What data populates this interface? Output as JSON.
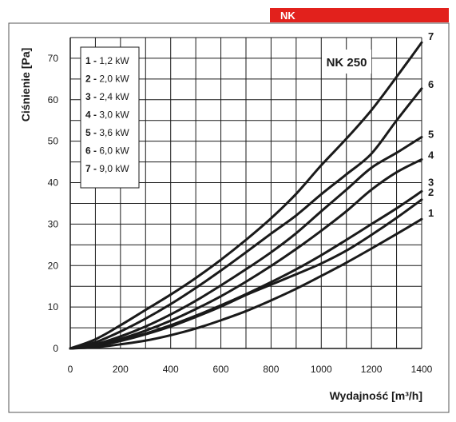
{
  "header": {
    "label": "NK",
    "color": "#e2211c"
  },
  "chart_data": {
    "type": "line",
    "title": "NK 250",
    "xlabel": "Wydajność [m³/h]",
    "ylabel": "Ciśnienie [Pa]",
    "xlim": [
      0,
      1400
    ],
    "ylim": [
      0,
      75
    ],
    "x_ticks": [
      0,
      200,
      400,
      600,
      800,
      1000,
      1200,
      1400
    ],
    "y_ticks": [
      0,
      10,
      20,
      30,
      40,
      50,
      60,
      70
    ],
    "grid": true,
    "legend_position": "top-left",
    "line_color": "#1a1a1a",
    "series": [
      {
        "id": "1",
        "name": "1,2 kW",
        "x": [
          0,
          100,
          200,
          300,
          400,
          500,
          600,
          700,
          800,
          900,
          1000,
          1100,
          1200,
          1300,
          1400
        ],
        "values": [
          0,
          0.3,
          1.0,
          1.9,
          3.2,
          4.8,
          6.8,
          9.0,
          11.6,
          14.4,
          17.5,
          20.7,
          24.1,
          27.6,
          31.2
        ]
      },
      {
        "id": "2",
        "name": "2,0 kW",
        "x": [
          0,
          100,
          200,
          300,
          400,
          500,
          600,
          700,
          800,
          900,
          1000,
          1100,
          1200,
          1300,
          1400
        ],
        "values": [
          0,
          0.6,
          1.8,
          3.4,
          5.3,
          7.6,
          10.1,
          12.9,
          15.4,
          17.9,
          20.5,
          23.6,
          27.4,
          31.5,
          35.9
        ]
      },
      {
        "id": "3",
        "name": "2,4 kW",
        "x": [
          0,
          100,
          200,
          300,
          400,
          500,
          600,
          700,
          800,
          900,
          1000,
          1100,
          1200,
          1300,
          1400
        ],
        "values": [
          0,
          0.7,
          2.0,
          3.6,
          5.6,
          7.9,
          10.4,
          13.1,
          16.0,
          19.1,
          22.5,
          26.2,
          30.0,
          33.8,
          37.9
        ]
      },
      {
        "id": "4",
        "name": "3,0 kW",
        "x": [
          0,
          100,
          200,
          300,
          400,
          500,
          600,
          700,
          800,
          900,
          1000,
          1100,
          1200,
          1300,
          1400
        ],
        "values": [
          0,
          0.8,
          2.3,
          4.3,
          6.7,
          9.5,
          12.6,
          16.1,
          19.9,
          24.0,
          28.4,
          33.1,
          38.3,
          42.5,
          45.6
        ]
      },
      {
        "id": "5",
        "name": "3,6 kW",
        "x": [
          0,
          100,
          200,
          300,
          400,
          500,
          600,
          700,
          800,
          900,
          1000,
          1100,
          1200,
          1300,
          1400
        ],
        "values": [
          0,
          1.0,
          2.9,
          5.3,
          8.2,
          11.5,
          15.2,
          19.1,
          23.2,
          27.8,
          33.1,
          38.3,
          43.6,
          47.2,
          51.0
        ]
      },
      {
        "id": "6",
        "name": "6,0 kW",
        "x": [
          0,
          100,
          200,
          300,
          400,
          500,
          600,
          700,
          800,
          900,
          1000,
          1100,
          1200,
          1300,
          1400
        ],
        "values": [
          0,
          1.5,
          4.1,
          7.2,
          10.7,
          14.6,
          18.8,
          23.2,
          27.7,
          32.1,
          37.2,
          42.0,
          47.0,
          55.0,
          62.7
        ]
      },
      {
        "id": "7",
        "name": "9,0 kW",
        "x": [
          0,
          100,
          200,
          300,
          400,
          500,
          600,
          700,
          800,
          900,
          1000,
          1100,
          1200,
          1300,
          1400
        ],
        "values": [
          0,
          2.2,
          5.6,
          9.3,
          13.0,
          17.0,
          21.4,
          26.2,
          31.4,
          37.3,
          44.2,
          50.6,
          57.5,
          65.5,
          73.8
        ]
      }
    ]
  }
}
